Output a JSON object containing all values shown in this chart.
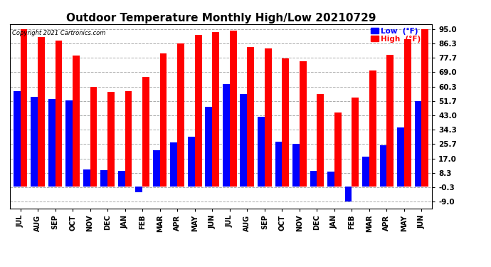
{
  "title": "Outdoor Temperature Monthly High/Low 20210729",
  "copyright": "Copyright 2021 Cartronics.com",
  "legend_low": "Low  (°F)",
  "legend_high": "High  (°F)",
  "categories": [
    "JUL",
    "AUG",
    "SEP",
    "OCT",
    "NOV",
    "DEC",
    "JAN",
    "FEB",
    "MAR",
    "APR",
    "MAY",
    "JUN",
    "JUL",
    "AUG",
    "SEP",
    "OCT",
    "NOV",
    "DEC",
    "JAN",
    "FEB",
    "MAR",
    "APR",
    "MAY",
    "JUN"
  ],
  "high_values": [
    95.0,
    90.0,
    88.0,
    79.0,
    60.0,
    57.0,
    57.5,
    66.0,
    80.5,
    86.5,
    91.5,
    93.0,
    94.0,
    84.0,
    83.5,
    77.5,
    75.5,
    56.0,
    44.5,
    53.5,
    70.0,
    79.5,
    89.0,
    95.0
  ],
  "low_values": [
    57.5,
    54.0,
    53.0,
    52.0,
    10.5,
    10.0,
    9.5,
    -3.5,
    22.0,
    26.5,
    30.0,
    48.0,
    62.0,
    56.0,
    42.0,
    27.0,
    26.0,
    9.5,
    9.0,
    -9.0,
    18.0,
    25.0,
    35.5,
    51.5
  ],
  "high_color": "#ff0000",
  "low_color": "#0000ff",
  "background_color": "#ffffff",
  "grid_color": "#aaaaaa",
  "yticks": [
    -9.0,
    -0.3,
    8.3,
    17.0,
    25.7,
    34.3,
    43.0,
    51.7,
    60.3,
    69.0,
    77.7,
    86.3,
    95.0
  ],
  "ylim": [
    -13.0,
    98.0
  ],
  "title_fontsize": 11,
  "bar_width": 0.4
}
